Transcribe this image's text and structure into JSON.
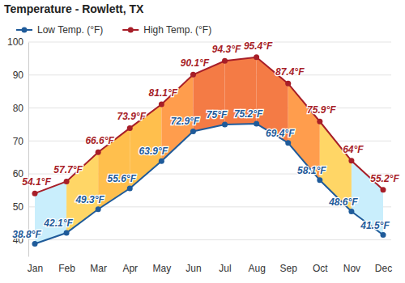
{
  "chart_data": {
    "type": "line",
    "title": "Temperature - Rowlett, TX",
    "categories": [
      "Jan",
      "Feb",
      "Mar",
      "Apr",
      "May",
      "Jun",
      "Jul",
      "Aug",
      "Sep",
      "Oct",
      "Nov",
      "Dec"
    ],
    "series": [
      {
        "name": "Low Temp. (°F)",
        "color": "#1f5b9a",
        "marker": "circle",
        "values": [
          38.8,
          42.1,
          49.3,
          55.6,
          63.9,
          72.9,
          75,
          75.2,
          69.4,
          58.1,
          48.6,
          41.5
        ],
        "value_labels": [
          "38.8°F",
          "42.1°F",
          "49.3°F",
          "55.6°F",
          "63.9°F",
          "72.9°F",
          "75°F",
          "75.2°F",
          "69.4°F",
          "58.1°F",
          "48.6°F",
          "41.5°F"
        ]
      },
      {
        "name": "High Temp. (°F)",
        "color": "#a71e28",
        "marker": "circle",
        "values": [
          54.1,
          57.7,
          66.6,
          73.9,
          81.1,
          90.1,
          94.3,
          95.4,
          87.4,
          75.9,
          64,
          55.2
        ],
        "value_labels": [
          "54.1°F",
          "57.7°F",
          "66.6°F",
          "73.9°F",
          "81.1°F",
          "90.1°F",
          "94.3°F",
          "95.4°F",
          "87.4°F",
          "75.9°F",
          "64°F",
          "55.2°F"
        ]
      }
    ],
    "ylim": [
      35,
      100
    ],
    "yticks": [
      40,
      50,
      60,
      70,
      80,
      90,
      100
    ],
    "grid": true,
    "legend": "top",
    "data_labels": true
  }
}
